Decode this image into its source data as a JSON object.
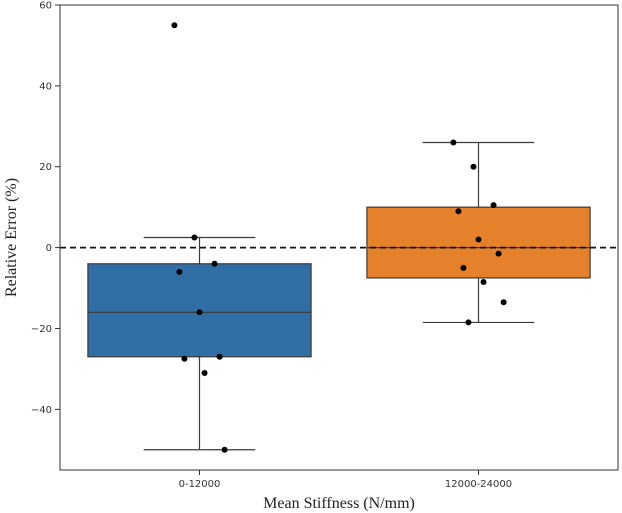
{
  "chart_data": {
    "type": "box",
    "xlabel": "Mean Stiffness (N/mm)",
    "ylabel": "Relative Error (%)",
    "ylim": [
      -55,
      60
    ],
    "yticks": [
      60,
      40,
      20,
      0,
      -20,
      -40
    ],
    "ytick_labels": [
      "60",
      "40",
      "20",
      "0",
      "−20",
      "−40"
    ],
    "categories": [
      "0-12000",
      "12000-24000"
    ],
    "reference_line": {
      "y": 0,
      "style": "dashed"
    },
    "boxes": [
      {
        "category": "0-12000",
        "color": "#2f6fa6",
        "whisker_low": -50,
        "q1": -27,
        "median": -16,
        "q3": -4,
        "whisker_high": 2.5,
        "points": [
          55,
          2.5,
          -4,
          -6,
          -16,
          -27,
          -27.5,
          -31,
          -50
        ]
      },
      {
        "category": "12000-24000",
        "color": "#e5812b",
        "whisker_low": -18.5,
        "q1": -7.5,
        "median": 0,
        "q3": 10,
        "whisker_high": 26,
        "points": [
          26,
          20,
          10.5,
          9,
          2,
          -1.5,
          -5,
          -8.5,
          -13.5,
          -18.5
        ]
      }
    ]
  }
}
